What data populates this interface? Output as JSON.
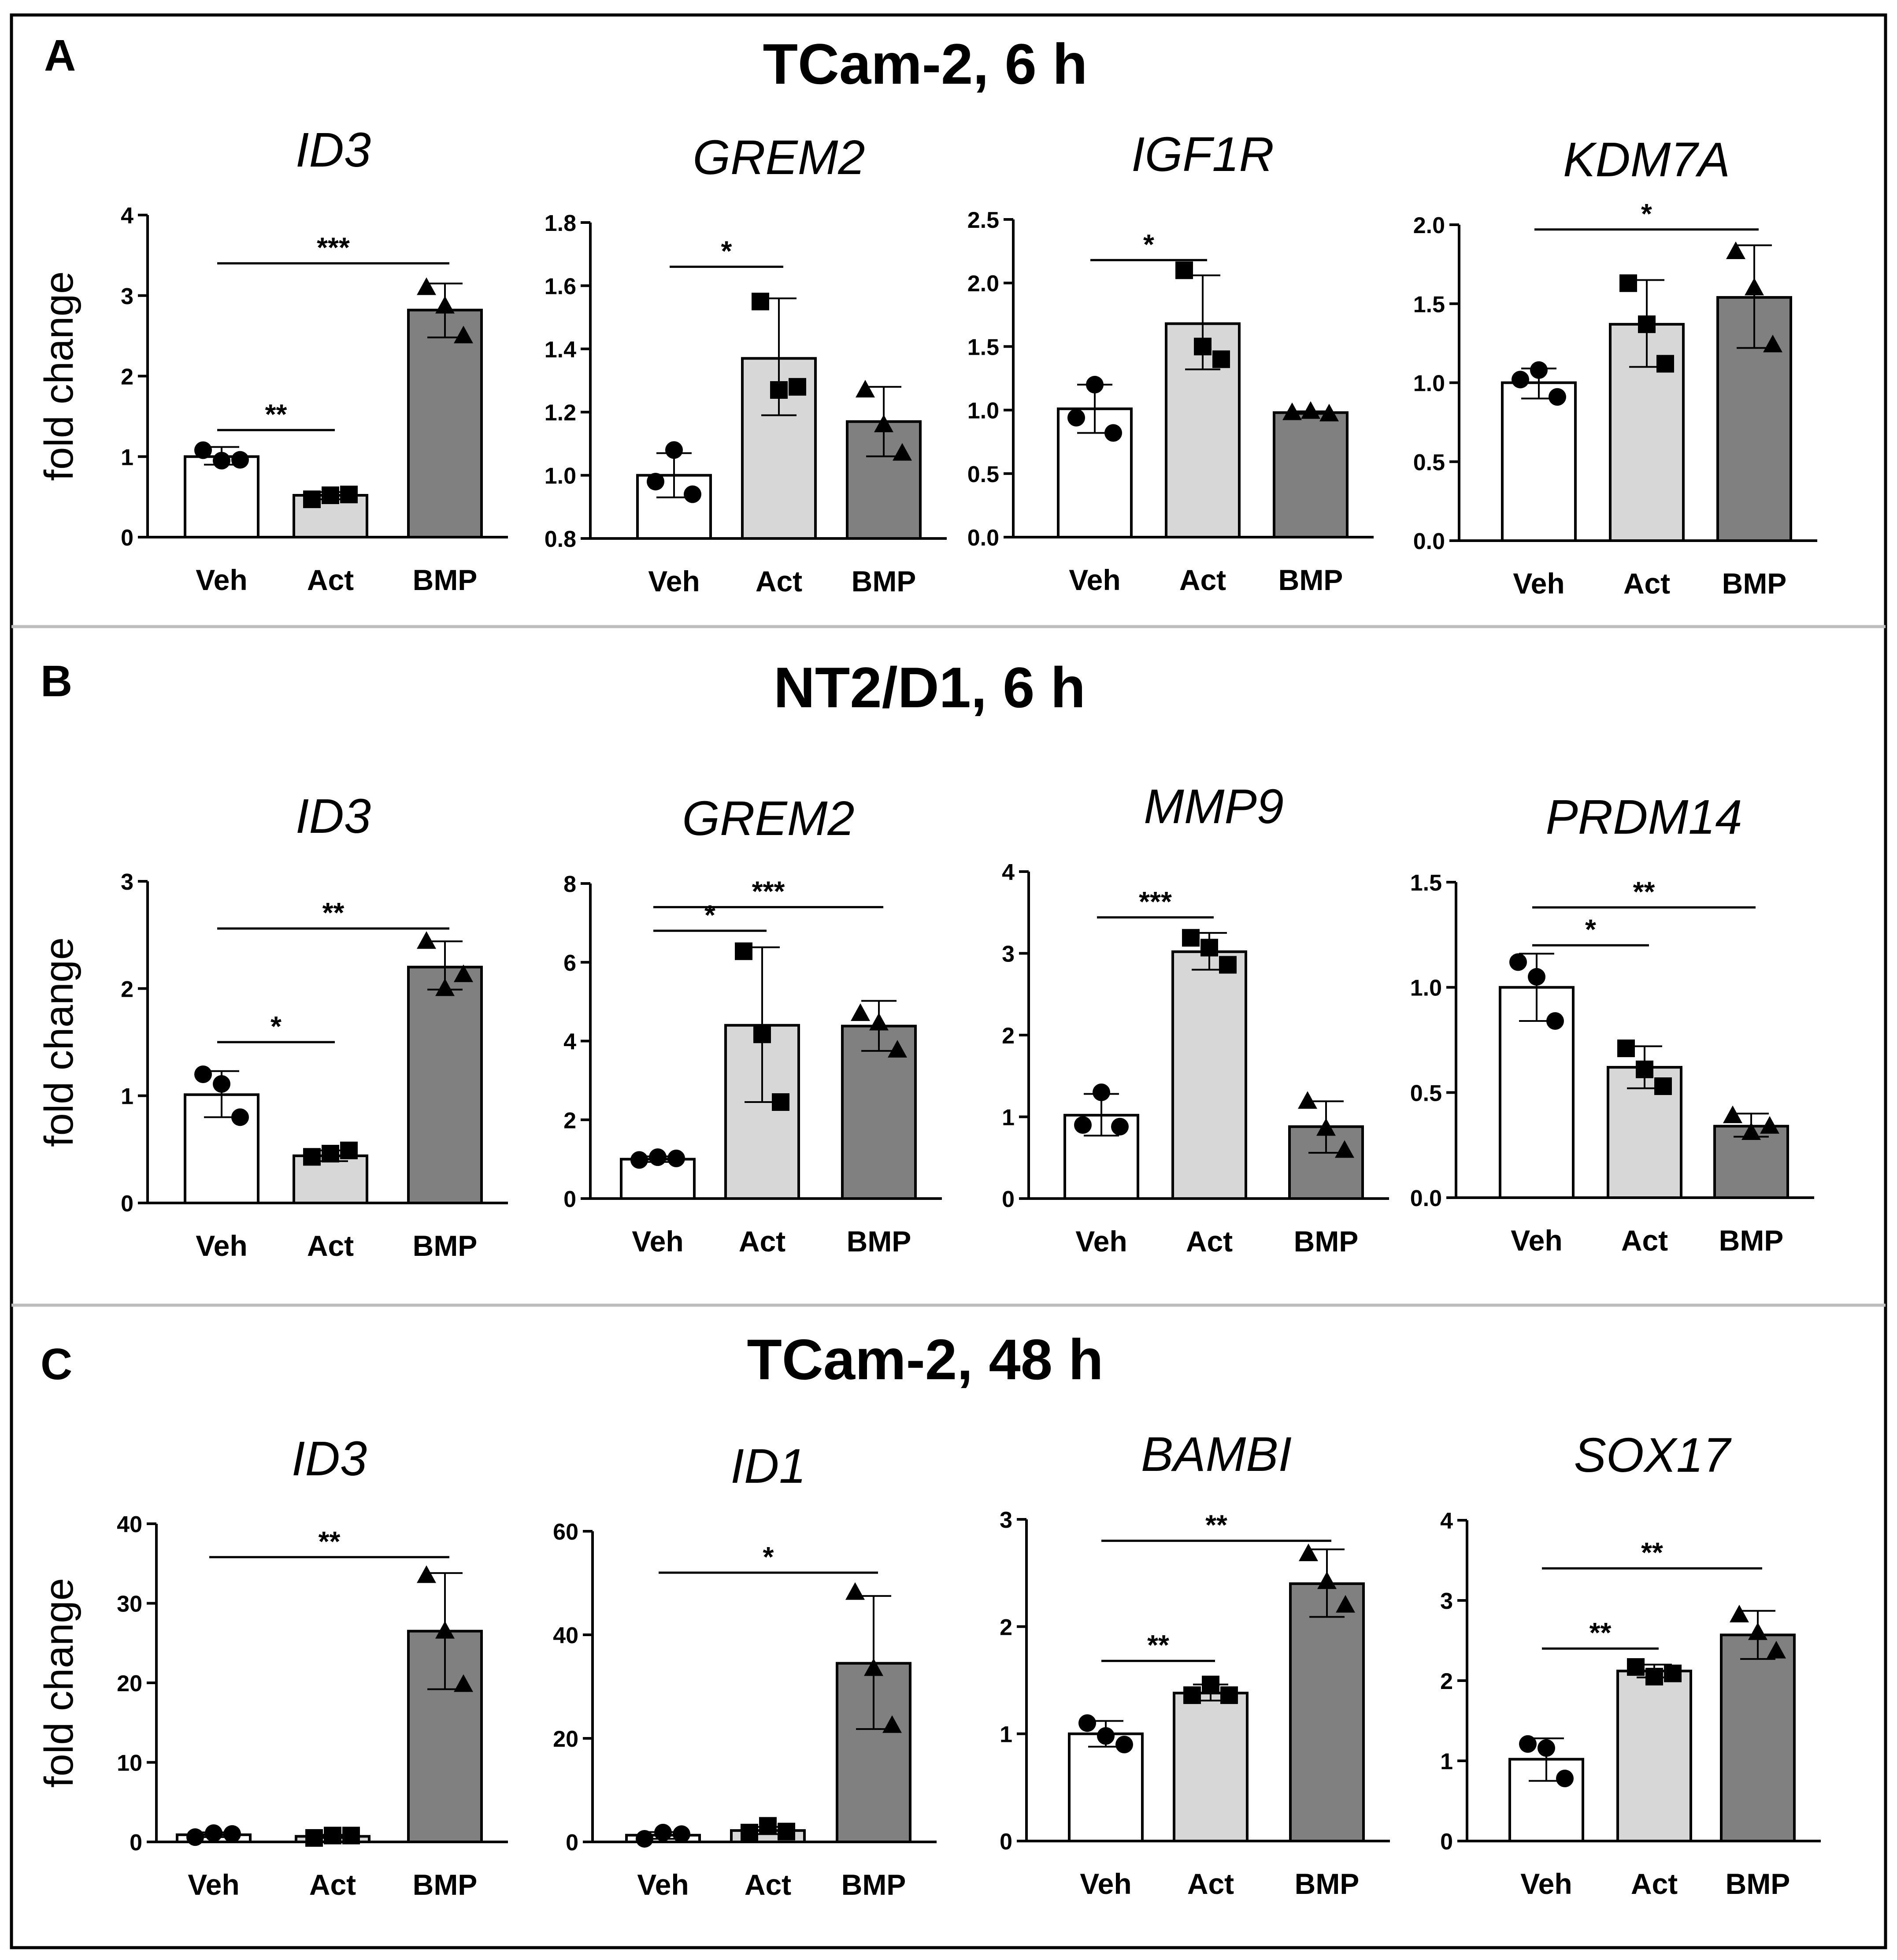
{
  "categories": [
    "Veh",
    "Act",
    "BMP"
  ],
  "ylabel": "fold change",
  "colors": {
    "Veh": "#ffffff",
    "Act": "#d7d7d7",
    "BMP": "#808080",
    "ink": "#000000",
    "divider": "#bdbdbd"
  },
  "panels": [
    {
      "letter": "A",
      "title": "TCam-2, 6 h"
    },
    {
      "letter": "B",
      "title": "NT2/D1, 6 h"
    },
    {
      "letter": "C",
      "title": "TCam-2, 48 h"
    }
  ],
  "chart_data": [
    {
      "type": "bar",
      "panel": "A",
      "title": "ID3",
      "ylabel": "fold change",
      "ylim": [
        0,
        4
      ],
      "yticks": [
        "0",
        "1",
        "2",
        "3",
        "4"
      ],
      "categories": [
        "Veh",
        "Act",
        "BMP"
      ],
      "values": [
        1.0,
        0.52,
        2.82
      ],
      "errors": [
        [
          0.9,
          1.12
        ],
        [
          0.47,
          0.56
        ],
        [
          2.48,
          3.15
        ]
      ],
      "points": [
        [
          1.08,
          0.95,
          0.96
        ],
        [
          0.47,
          0.52,
          0.53
        ],
        [
          3.1,
          2.87,
          2.5
        ]
      ],
      "significance": [
        {
          "from": 0,
          "to": 2,
          "label": "***",
          "y": 3.4
        },
        {
          "from": 0,
          "to": 1,
          "label": "**",
          "y": 1.33
        }
      ]
    },
    {
      "type": "bar",
      "panel": "A",
      "title": "GREM2",
      "ylabel": "",
      "ylim": [
        0.8,
        1.8
      ],
      "yticks": [
        "0.8",
        "1.0",
        "1.2",
        "1.4",
        "1.6",
        "1.8"
      ],
      "categories": [
        "Veh",
        "Act",
        "BMP"
      ],
      "values": [
        1.0,
        1.37,
        1.17
      ],
      "errors": [
        [
          0.93,
          1.07
        ],
        [
          1.19,
          1.56
        ],
        [
          1.06,
          1.28
        ]
      ],
      "points": [
        [
          0.98,
          1.08,
          0.94
        ],
        [
          1.55,
          1.27,
          1.28
        ],
        [
          1.27,
          1.16,
          1.07
        ]
      ],
      "significance": [
        {
          "from": 0,
          "to": 1,
          "label": "*",
          "y": 1.66
        }
      ]
    },
    {
      "type": "bar",
      "panel": "A",
      "title": "IGF1R",
      "ylabel": "",
      "ylim": [
        0,
        2.5
      ],
      "yticks": [
        "0.0",
        "0.5",
        "1.0",
        "1.5",
        "2.0",
        "2.5"
      ],
      "categories": [
        "Veh",
        "Act",
        "BMP"
      ],
      "values": [
        1.01,
        1.68,
        0.98
      ],
      "errors": [
        [
          0.82,
          1.2
        ],
        [
          1.32,
          2.06
        ],
        [
          0.97,
          0.99
        ]
      ],
      "points": [
        [
          0.94,
          1.2,
          0.82
        ],
        [
          2.1,
          1.5,
          1.4
        ],
        [
          0.98,
          0.99,
          0.97
        ]
      ],
      "significance": [
        {
          "from": 0,
          "to": 1,
          "label": "*",
          "y": 2.18
        }
      ]
    },
    {
      "type": "bar",
      "panel": "A",
      "title": "KDM7A",
      "ylabel": "",
      "ylim": [
        0,
        2
      ],
      "yticks": [
        "0.0",
        "0.5",
        "1.0",
        "1.5",
        "2.0"
      ],
      "categories": [
        "Veh",
        "Act",
        "BMP"
      ],
      "values": [
        1.0,
        1.37,
        1.54
      ],
      "errors": [
        [
          0.9,
          1.09
        ],
        [
          1.1,
          1.65
        ],
        [
          1.22,
          1.87
        ]
      ],
      "points": [
        [
          1.02,
          1.08,
          0.91
        ],
        [
          1.63,
          1.37,
          1.12
        ],
        [
          1.83,
          1.6,
          1.24
        ]
      ],
      "significance": [
        {
          "from": 0,
          "to": 2,
          "label": "*",
          "y": 1.97
        }
      ]
    },
    {
      "type": "bar",
      "panel": "B",
      "title": "ID3",
      "ylabel": "fold change",
      "ylim": [
        0,
        3
      ],
      "yticks": [
        "0",
        "1",
        "2",
        "3"
      ],
      "categories": [
        "Veh",
        "Act",
        "BMP"
      ],
      "values": [
        1.01,
        0.44,
        2.2
      ],
      "errors": [
        [
          0.8,
          1.23
        ],
        [
          0.39,
          0.49
        ],
        [
          1.99,
          2.44
        ]
      ],
      "points": [
        [
          1.2,
          1.11,
          0.8
        ],
        [
          0.43,
          0.46,
          0.49
        ],
        [
          2.44,
          2.0,
          2.13
        ]
      ],
      "significance": [
        {
          "from": 0,
          "to": 2,
          "label": "**",
          "y": 2.56
        },
        {
          "from": 0,
          "to": 1,
          "label": "*",
          "y": 1.5
        }
      ]
    },
    {
      "type": "bar",
      "panel": "B",
      "title": "GREM2",
      "ylabel": "",
      "ylim": [
        0,
        8
      ],
      "yticks": [
        "0",
        "2",
        "4",
        "6",
        "8"
      ],
      "categories": [
        "Veh",
        "Act",
        "BMP"
      ],
      "values": [
        1.0,
        4.4,
        4.38
      ],
      "errors": [
        [
          0.93,
          1.07
        ],
        [
          2.45,
          6.38
        ],
        [
          3.75,
          5.02
        ]
      ],
      "points": [
        [
          0.98,
          1.05,
          1.02
        ],
        [
          6.28,
          4.17,
          2.45
        ],
        [
          4.7,
          4.46,
          3.77
        ]
      ],
      "significance": [
        {
          "from": 0,
          "to": 2,
          "label": "***",
          "y": 7.4
        },
        {
          "from": 0,
          "to": 1,
          "label": "*",
          "y": 6.8
        }
      ]
    },
    {
      "type": "bar",
      "panel": "B",
      "title": "MMP9",
      "ylabel": "",
      "ylim": [
        0,
        4
      ],
      "yticks": [
        "0",
        "1",
        "2",
        "3",
        "4"
      ],
      "categories": [
        "Veh",
        "Act",
        "BMP"
      ],
      "values": [
        1.02,
        3.02,
        0.88
      ],
      "errors": [
        [
          0.77,
          1.28
        ],
        [
          2.8,
          3.25
        ],
        [
          0.56,
          1.19
        ]
      ],
      "points": [
        [
          0.9,
          1.3,
          0.88
        ],
        [
          3.19,
          3.07,
          2.86
        ],
        [
          1.19,
          0.86,
          0.59
        ]
      ],
      "significance": [
        {
          "from": 0,
          "to": 1,
          "label": "***",
          "y": 3.44
        }
      ]
    },
    {
      "type": "bar",
      "panel": "B",
      "title": "PRDM14",
      "ylabel": "",
      "ylim": [
        0,
        1.5
      ],
      "yticks": [
        "0.0",
        "0.5",
        "1.0",
        "1.5"
      ],
      "categories": [
        "Veh",
        "Act",
        "BMP"
      ],
      "values": [
        1.0,
        0.62,
        0.34
      ],
      "errors": [
        [
          0.84,
          1.16
        ],
        [
          0.52,
          0.72
        ],
        [
          0.29,
          0.4
        ]
      ],
      "points": [
        [
          1.12,
          1.05,
          0.84
        ],
        [
          0.71,
          0.61,
          0.53
        ],
        [
          0.39,
          0.31,
          0.34
        ]
      ],
      "significance": [
        {
          "from": 0,
          "to": 2,
          "label": "**",
          "y": 1.38
        },
        {
          "from": 0,
          "to": 1,
          "label": "*",
          "y": 1.2
        }
      ]
    },
    {
      "type": "bar",
      "panel": "C",
      "title": "ID3",
      "ylabel": "fold change",
      "ylim": [
        0,
        40
      ],
      "yticks": [
        "0",
        "10",
        "20",
        "30",
        "40"
      ],
      "categories": [
        "Veh",
        "Act",
        "BMP"
      ],
      "values": [
        0.9,
        0.7,
        26.5
      ],
      "errors": [
        [
          0.6,
          1.2
        ],
        [
          0.5,
          0.9
        ],
        [
          19.2,
          33.8
        ]
      ],
      "points": [
        [
          0.6,
          1.1,
          1.0
        ],
        [
          0.5,
          0.8,
          0.8
        ],
        [
          33.5,
          26.5,
          19.8
        ]
      ],
      "significance": [
        {
          "from": 0,
          "to": 2,
          "label": "**",
          "y": 35.8
        }
      ]
    },
    {
      "type": "bar",
      "panel": "C",
      "title": "ID1",
      "ylabel": "",
      "ylim": [
        0,
        60
      ],
      "yticks": [
        "0",
        "20",
        "40",
        "60"
      ],
      "categories": [
        "Veh",
        "Act",
        "BMP"
      ],
      "values": [
        1.3,
        2.2,
        34.5
      ],
      "errors": [
        [
          0.6,
          1.9
        ],
        [
          1.5,
          2.9
        ],
        [
          21.8,
          47.5
        ]
      ],
      "points": [
        [
          0.6,
          1.8,
          1.5
        ],
        [
          1.8,
          3.1,
          2.0
        ],
        [
          48.2,
          33.5,
          22.5
        ]
      ],
      "significance": [
        {
          "from": 0,
          "to": 2,
          "label": "*",
          "y": 52
        }
      ]
    },
    {
      "type": "bar",
      "panel": "C",
      "title": "BAMBI",
      "ylabel": "",
      "ylim": [
        0,
        3
      ],
      "yticks": [
        "0",
        "1",
        "2",
        "3"
      ],
      "categories": [
        "Veh",
        "Act",
        "BMP"
      ],
      "values": [
        1.0,
        1.38,
        2.4
      ],
      "errors": [
        [
          0.88,
          1.12
        ],
        [
          1.31,
          1.46
        ],
        [
          2.09,
          2.72
        ]
      ],
      "points": [
        [
          1.1,
          0.98,
          0.9
        ],
        [
          1.36,
          1.46,
          1.36
        ],
        [
          2.68,
          2.42,
          2.2
        ]
      ],
      "significance": [
        {
          "from": 0,
          "to": 2,
          "label": "**",
          "y": 2.8
        },
        {
          "from": 0,
          "to": 1,
          "label": "**",
          "y": 1.68
        }
      ]
    },
    {
      "type": "bar",
      "panel": "C",
      "title": "SOX17",
      "ylabel": "",
      "ylim": [
        0,
        4
      ],
      "yticks": [
        "0",
        "1",
        "2",
        "3",
        "4"
      ],
      "categories": [
        "Veh",
        "Act",
        "BMP"
      ],
      "values": [
        1.02,
        2.12,
        2.57
      ],
      "errors": [
        [
          0.75,
          1.28
        ],
        [
          2.04,
          2.2
        ],
        [
          2.27,
          2.87
        ]
      ],
      "points": [
        [
          1.21,
          1.16,
          0.78
        ],
        [
          2.17,
          2.05,
          2.09
        ],
        [
          2.82,
          2.6,
          2.37
        ]
      ],
      "significance": [
        {
          "from": 0,
          "to": 2,
          "label": "**",
          "y": 3.4
        },
        {
          "from": 0,
          "to": 1,
          "label": "**",
          "y": 2.4
        }
      ]
    }
  ]
}
